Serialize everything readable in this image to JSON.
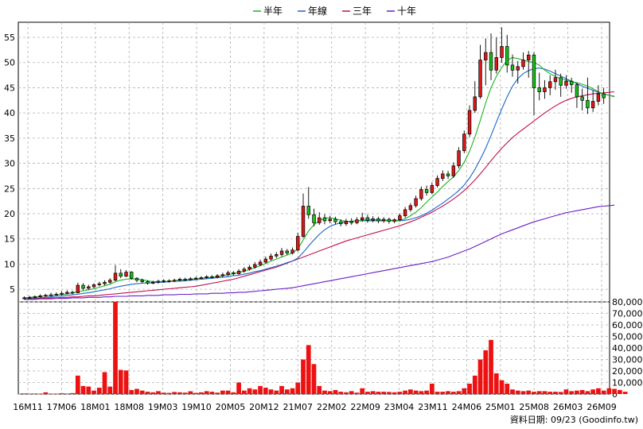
{
  "chart_data": {
    "type": "candlestick",
    "legend": [
      {
        "name": "半年",
        "color": "#1fb31f"
      },
      {
        "name": "年線",
        "color": "#1a66cc"
      },
      {
        "name": "三年",
        "color": "#c01050"
      },
      {
        "name": "十年",
        "color": "#6a1fc8"
      }
    ],
    "price_axis": {
      "ylim": [
        2.5,
        58
      ],
      "ticks": [
        5,
        10,
        15,
        20,
        25,
        30,
        35,
        40,
        45,
        50,
        55
      ]
    },
    "volume_axis": {
      "ylim": [
        0,
        80000
      ],
      "ticks": [
        "80,000",
        "70,000",
        "60,000",
        "50,000",
        "40,000",
        "30,000",
        "20,000",
        "10,000",
        "0"
      ]
    },
    "x_labels": [
      "16M11",
      "17M06",
      "18M01",
      "18M08",
      "19M03",
      "19M10",
      "20M05",
      "20M12",
      "21M07",
      "22M02",
      "22M09",
      "23M04",
      "23M11",
      "24M06",
      "25M01",
      "25M08",
      "26M03",
      "26M09"
    ],
    "candles": [
      {
        "o": 3.2,
        "c": 3.3,
        "h": 3.6,
        "l": 3.0
      },
      {
        "o": 3.3,
        "c": 3.4,
        "h": 3.7,
        "l": 3.1
      },
      {
        "o": 3.4,
        "c": 3.5,
        "h": 3.8,
        "l": 3.2
      },
      {
        "o": 3.5,
        "c": 3.7,
        "h": 4.0,
        "l": 3.3
      },
      {
        "o": 3.7,
        "c": 3.8,
        "h": 4.1,
        "l": 3.5
      },
      {
        "o": 3.8,
        "c": 3.9,
        "h": 4.3,
        "l": 3.6
      },
      {
        "o": 3.9,
        "c": 4.0,
        "h": 4.4,
        "l": 3.7
      },
      {
        "o": 4.0,
        "c": 4.2,
        "h": 4.6,
        "l": 3.8
      },
      {
        "o": 4.2,
        "c": 4.4,
        "h": 4.8,
        "l": 4.0
      },
      {
        "o": 4.4,
        "c": 4.3,
        "h": 4.7,
        "l": 4.0
      },
      {
        "o": 4.3,
        "c": 5.8,
        "h": 6.3,
        "l": 4.2
      },
      {
        "o": 5.8,
        "c": 5.2,
        "h": 6.2,
        "l": 4.8
      },
      {
        "o": 5.2,
        "c": 5.5,
        "h": 5.9,
        "l": 4.9
      },
      {
        "o": 5.5,
        "c": 5.9,
        "h": 6.2,
        "l": 5.2
      },
      {
        "o": 5.9,
        "c": 6.1,
        "h": 6.5,
        "l": 5.6
      },
      {
        "o": 6.1,
        "c": 6.4,
        "h": 6.8,
        "l": 5.8
      },
      {
        "o": 6.4,
        "c": 6.8,
        "h": 7.2,
        "l": 6.1
      },
      {
        "o": 6.8,
        "c": 8.2,
        "h": 9.8,
        "l": 6.6
      },
      {
        "o": 8.2,
        "c": 7.6,
        "h": 9.0,
        "l": 7.2
      },
      {
        "o": 7.6,
        "c": 8.4,
        "h": 8.8,
        "l": 7.4
      },
      {
        "o": 8.4,
        "c": 7.2,
        "h": 8.6,
        "l": 6.9
      },
      {
        "o": 7.2,
        "c": 6.8,
        "h": 7.4,
        "l": 6.4
      },
      {
        "o": 6.8,
        "c": 6.5,
        "h": 7.1,
        "l": 6.2
      },
      {
        "o": 6.5,
        "c": 6.2,
        "h": 6.8,
        "l": 5.9
      },
      {
        "o": 6.2,
        "c": 6.4,
        "h": 6.7,
        "l": 6.0
      },
      {
        "o": 6.4,
        "c": 6.6,
        "h": 6.9,
        "l": 6.1
      },
      {
        "o": 6.6,
        "c": 6.7,
        "h": 7.0,
        "l": 6.3
      },
      {
        "o": 6.7,
        "c": 6.6,
        "h": 7.0,
        "l": 6.3
      },
      {
        "o": 6.6,
        "c": 6.8,
        "h": 7.1,
        "l": 6.4
      },
      {
        "o": 6.8,
        "c": 7.0,
        "h": 7.3,
        "l": 6.6
      },
      {
        "o": 7.0,
        "c": 6.9,
        "h": 7.3,
        "l": 6.6
      },
      {
        "o": 6.9,
        "c": 7.1,
        "h": 7.4,
        "l": 6.7
      },
      {
        "o": 7.1,
        "c": 7.2,
        "h": 7.5,
        "l": 6.9
      },
      {
        "o": 7.2,
        "c": 7.3,
        "h": 7.6,
        "l": 7.0
      },
      {
        "o": 7.3,
        "c": 7.5,
        "h": 7.8,
        "l": 7.1
      },
      {
        "o": 7.5,
        "c": 7.4,
        "h": 7.8,
        "l": 7.1
      },
      {
        "o": 7.4,
        "c": 7.7,
        "h": 8.0,
        "l": 7.2
      },
      {
        "o": 7.7,
        "c": 7.9,
        "h": 8.3,
        "l": 7.4
      },
      {
        "o": 7.9,
        "c": 8.3,
        "h": 8.7,
        "l": 7.6
      },
      {
        "o": 8.3,
        "c": 8.1,
        "h": 8.6,
        "l": 7.7
      },
      {
        "o": 8.1,
        "c": 8.6,
        "h": 9.0,
        "l": 7.9
      },
      {
        "o": 8.6,
        "c": 9.0,
        "h": 9.4,
        "l": 8.3
      },
      {
        "o": 9.0,
        "c": 9.4,
        "h": 9.8,
        "l": 8.7
      },
      {
        "o": 9.4,
        "c": 9.9,
        "h": 10.4,
        "l": 9.1
      },
      {
        "o": 9.9,
        "c": 10.4,
        "h": 10.9,
        "l": 9.6
      },
      {
        "o": 10.4,
        "c": 11.0,
        "h": 11.5,
        "l": 10.1
      },
      {
        "o": 11.0,
        "c": 11.6,
        "h": 12.1,
        "l": 10.7
      },
      {
        "o": 11.6,
        "c": 11.9,
        "h": 12.4,
        "l": 11.2
      },
      {
        "o": 11.9,
        "c": 12.6,
        "h": 13.2,
        "l": 11.5
      },
      {
        "o": 12.6,
        "c": 12.2,
        "h": 13.0,
        "l": 11.8
      },
      {
        "o": 12.2,
        "c": 12.8,
        "h": 13.3,
        "l": 11.9
      },
      {
        "o": 12.8,
        "c": 15.5,
        "h": 16.2,
        "l": 12.5
      },
      {
        "o": 15.5,
        "c": 21.5,
        "h": 24.0,
        "l": 15.2
      },
      {
        "o": 21.5,
        "c": 19.8,
        "h": 25.3,
        "l": 19.0
      },
      {
        "o": 19.8,
        "c": 18.2,
        "h": 21.0,
        "l": 17.5
      },
      {
        "o": 18.2,
        "c": 19.2,
        "h": 20.3,
        "l": 17.8
      },
      {
        "o": 19.2,
        "c": 18.6,
        "h": 19.9,
        "l": 17.9
      },
      {
        "o": 18.6,
        "c": 18.9,
        "h": 19.6,
        "l": 18.1
      },
      {
        "o": 18.9,
        "c": 18.4,
        "h": 19.4,
        "l": 17.9
      },
      {
        "o": 18.4,
        "c": 18.0,
        "h": 18.9,
        "l": 17.5
      },
      {
        "o": 18.0,
        "c": 18.5,
        "h": 19.0,
        "l": 17.6
      },
      {
        "o": 18.5,
        "c": 18.2,
        "h": 19.1,
        "l": 17.8
      },
      {
        "o": 18.2,
        "c": 18.8,
        "h": 19.3,
        "l": 17.9
      },
      {
        "o": 18.8,
        "c": 19.2,
        "h": 20.2,
        "l": 18.4
      },
      {
        "o": 19.2,
        "c": 18.7,
        "h": 19.8,
        "l": 18.2
      },
      {
        "o": 18.7,
        "c": 19.0,
        "h": 19.5,
        "l": 18.3
      },
      {
        "o": 19.0,
        "c": 18.6,
        "h": 19.4,
        "l": 18.1
      },
      {
        "o": 18.6,
        "c": 18.9,
        "h": 19.3,
        "l": 18.2
      },
      {
        "o": 18.9,
        "c": 18.5,
        "h": 19.2,
        "l": 18.0
      },
      {
        "o": 18.5,
        "c": 18.8,
        "h": 19.1,
        "l": 18.1
      },
      {
        "o": 18.8,
        "c": 19.6,
        "h": 20.0,
        "l": 18.5
      },
      {
        "o": 19.6,
        "c": 20.8,
        "h": 21.3,
        "l": 19.2
      },
      {
        "o": 20.8,
        "c": 21.6,
        "h": 22.1,
        "l": 20.4
      },
      {
        "o": 21.6,
        "c": 23.0,
        "h": 23.6,
        "l": 21.2
      },
      {
        "o": 23.0,
        "c": 24.8,
        "h": 25.4,
        "l": 22.6
      },
      {
        "o": 24.8,
        "c": 24.2,
        "h": 25.6,
        "l": 23.6
      },
      {
        "o": 24.2,
        "c": 25.6,
        "h": 26.2,
        "l": 23.9
      },
      {
        "o": 25.6,
        "c": 27.0,
        "h": 27.6,
        "l": 25.2
      },
      {
        "o": 27.0,
        "c": 27.9,
        "h": 28.6,
        "l": 26.5
      },
      {
        "o": 27.9,
        "c": 27.5,
        "h": 28.5,
        "l": 26.9
      },
      {
        "o": 27.5,
        "c": 29.5,
        "h": 30.2,
        "l": 27.1
      },
      {
        "o": 29.5,
        "c": 32.5,
        "h": 33.2,
        "l": 29.0
      },
      {
        "o": 32.5,
        "c": 35.8,
        "h": 36.5,
        "l": 32.0
      },
      {
        "o": 35.8,
        "c": 40.5,
        "h": 41.5,
        "l": 35.2
      },
      {
        "o": 40.5,
        "c": 43.2,
        "h": 46.3,
        "l": 40.0
      },
      {
        "o": 43.2,
        "c": 50.5,
        "h": 53.5,
        "l": 42.8
      },
      {
        "o": 50.5,
        "c": 52.0,
        "h": 54.8,
        "l": 45.5
      },
      {
        "o": 52.0,
        "c": 48.5,
        "h": 55.8,
        "l": 46.5
      },
      {
        "o": 48.5,
        "c": 51.0,
        "h": 55.0,
        "l": 47.8
      },
      {
        "o": 51.0,
        "c": 53.2,
        "h": 57.0,
        "l": 50.0
      },
      {
        "o": 53.2,
        "c": 49.5,
        "h": 55.5,
        "l": 48.0
      },
      {
        "o": 49.5,
        "c": 48.5,
        "h": 51.6,
        "l": 47.2
      },
      {
        "o": 48.5,
        "c": 49.2,
        "h": 50.3,
        "l": 45.8
      },
      {
        "o": 49.2,
        "c": 50.5,
        "h": 52.0,
        "l": 48.6
      },
      {
        "o": 50.5,
        "c": 51.5,
        "h": 52.3,
        "l": 47.0
      },
      {
        "o": 51.5,
        "c": 45.0,
        "h": 52.0,
        "l": 39.5
      },
      {
        "o": 45.0,
        "c": 44.2,
        "h": 48.0,
        "l": 42.5
      },
      {
        "o": 44.2,
        "c": 45.0,
        "h": 46.5,
        "l": 42.8
      },
      {
        "o": 45.0,
        "c": 46.2,
        "h": 47.5,
        "l": 43.5
      },
      {
        "o": 46.2,
        "c": 47.0,
        "h": 48.6,
        "l": 44.6
      },
      {
        "o": 47.0,
        "c": 45.5,
        "h": 47.8,
        "l": 43.2
      },
      {
        "o": 45.5,
        "c": 46.3,
        "h": 47.5,
        "l": 44.8
      },
      {
        "o": 46.3,
        "c": 45.6,
        "h": 47.0,
        "l": 44.0
      },
      {
        "o": 45.6,
        "c": 43.2,
        "h": 46.0,
        "l": 41.0
      },
      {
        "o": 43.2,
        "c": 42.5,
        "h": 44.8,
        "l": 40.5
      },
      {
        "o": 42.5,
        "c": 41.0,
        "h": 47.0,
        "l": 39.8
      },
      {
        "o": 41.0,
        "c": 42.3,
        "h": 44.5,
        "l": 40.2
      },
      {
        "o": 42.3,
        "c": 43.8,
        "h": 45.5,
        "l": 41.5
      },
      {
        "o": 43.8,
        "c": 43.0,
        "h": 45.0,
        "l": 41.8
      }
    ],
    "ma_half_year": [
      3.3,
      3.4,
      3.5,
      3.6,
      3.7,
      3.8,
      3.9,
      4.0,
      4.1,
      4.3,
      4.5,
      4.7,
      4.9,
      5.1,
      5.4,
      5.7,
      6.0,
      6.5,
      6.8,
      7.0,
      7.1,
      7.0,
      6.9,
      6.7,
      6.5,
      6.5,
      6.5,
      6.6,
      6.7,
      6.8,
      6.9,
      7.0,
      7.1,
      7.2,
      7.3,
      7.4,
      7.5,
      7.7,
      7.9,
      8.1,
      8.3,
      8.6,
      8.9,
      9.3,
      9.7,
      10.1,
      10.6,
      11.0,
      11.4,
      11.8,
      12.2,
      13.0,
      14.8,
      16.6,
      17.8,
      18.6,
      19.1,
      19.2,
      19.0,
      18.7,
      18.5,
      18.5,
      18.6,
      18.7,
      18.8,
      18.8,
      18.8,
      18.7,
      18.7,
      18.7,
      18.7,
      19.0,
      19.6,
      20.3,
      21.2,
      22.3,
      23.3,
      24.3,
      25.4,
      26.4,
      27.3,
      28.6,
      30.2,
      32.4,
      35.2,
      38.5,
      42.0,
      45.0,
      47.3,
      49.0,
      50.5,
      51.0,
      50.8,
      50.5,
      50.2,
      50.0,
      49.5,
      48.5,
      47.8,
      47.2,
      46.8,
      46.5,
      46.2,
      46.0,
      45.7,
      45.3,
      44.8,
      44.2,
      43.8,
      43.5,
      43.2
    ],
    "ma_year": [
      3.1,
      3.2,
      3.3,
      3.3,
      3.4,
      3.5,
      3.6,
      3.7,
      3.8,
      3.9,
      4.0,
      4.2,
      4.3,
      4.5,
      4.7,
      4.9,
      5.1,
      5.4,
      5.6,
      5.8,
      6.0,
      6.1,
      6.2,
      6.3,
      6.3,
      6.4,
      6.4,
      6.5,
      6.6,
      6.6,
      6.7,
      6.8,
      6.9,
      7.0,
      7.1,
      7.2,
      7.3,
      7.4,
      7.5,
      7.7,
      7.8,
      8.0,
      8.2,
      8.5,
      8.7,
      9.0,
      9.3,
      9.6,
      9.9,
      10.3,
      10.6,
      11.2,
      12.3,
      13.6,
      14.8,
      15.9,
      16.8,
      17.5,
      17.9,
      18.2,
      18.4,
      18.5,
      18.6,
      18.6,
      18.6,
      18.6,
      18.6,
      18.6,
      18.6,
      18.6,
      18.6,
      18.7,
      18.9,
      19.2,
      19.6,
      20.1,
      20.7,
      21.4,
      22.1,
      22.9,
      23.7,
      24.6,
      25.7,
      27.1,
      28.8,
      30.8,
      33.0,
      35.5,
      38.2,
      40.8,
      43.2,
      45.3,
      46.8,
      47.8,
      48.4,
      48.8,
      48.9,
      48.7,
      48.3,
      47.8,
      47.3,
      46.8,
      46.3,
      45.8,
      45.3,
      44.9,
      44.5,
      44.1,
      43.8,
      43.5,
      43.3
    ],
    "ma_three_year": [
      3.0,
      3.1,
      3.1,
      3.2,
      3.2,
      3.3,
      3.3,
      3.4,
      3.4,
      3.5,
      3.5,
      3.6,
      3.7,
      3.7,
      3.8,
      3.9,
      4.0,
      4.1,
      4.2,
      4.3,
      4.4,
      4.5,
      4.6,
      4.7,
      4.8,
      4.9,
      5.0,
      5.1,
      5.2,
      5.3,
      5.4,
      5.5,
      5.6,
      5.8,
      6.0,
      6.2,
      6.4,
      6.6,
      6.8,
      7.0,
      7.3,
      7.6,
      7.9,
      8.2,
      8.5,
      8.8,
      9.1,
      9.4,
      9.8,
      10.2,
      10.6,
      11.0,
      11.4,
      11.8,
      12.2,
      12.6,
      13.0,
      13.4,
      13.8,
      14.2,
      14.6,
      14.9,
      15.2,
      15.5,
      15.8,
      16.1,
      16.4,
      16.7,
      17.0,
      17.3,
      17.6,
      18.0,
      18.4,
      18.8,
      19.3,
      19.8,
      20.3,
      20.9,
      21.5,
      22.2,
      22.9,
      23.7,
      24.6,
      25.6,
      26.7,
      27.9,
      29.2,
      30.5,
      31.8,
      33.0,
      34.1,
      35.1,
      36.0,
      36.8,
      37.6,
      38.4,
      39.2,
      40.0,
      40.7,
      41.4,
      42.0,
      42.5,
      42.9,
      43.2,
      43.4,
      43.6,
      43.8,
      43.9,
      44.0,
      44.1,
      44.2
    ],
    "ma_ten_year": [
      3.0,
      3.0,
      3.0,
      3.1,
      3.1,
      3.1,
      3.2,
      3.2,
      3.2,
      3.3,
      3.3,
      3.3,
      3.4,
      3.4,
      3.4,
      3.5,
      3.5,
      3.6,
      3.6,
      3.6,
      3.7,
      3.7,
      3.7,
      3.8,
      3.8,
      3.8,
      3.9,
      3.9,
      3.9,
      4.0,
      4.0,
      4.0,
      4.1,
      4.1,
      4.1,
      4.2,
      4.2,
      4.2,
      4.3,
      4.3,
      4.4,
      4.4,
      4.5,
      4.6,
      4.7,
      4.8,
      4.9,
      5.0,
      5.1,
      5.2,
      5.3,
      5.5,
      5.7,
      5.9,
      6.1,
      6.3,
      6.5,
      6.7,
      6.9,
      7.1,
      7.3,
      7.5,
      7.7,
      7.9,
      8.1,
      8.3,
      8.5,
      8.7,
      8.9,
      9.1,
      9.3,
      9.5,
      9.7,
      9.9,
      10.1,
      10.3,
      10.5,
      10.8,
      11.1,
      11.4,
      11.8,
      12.2,
      12.6,
      13.0,
      13.5,
      14.0,
      14.5,
      15.0,
      15.5,
      16.0,
      16.4,
      16.8,
      17.2,
      17.6,
      18.0,
      18.4,
      18.7,
      19.0,
      19.3,
      19.6,
      19.9,
      20.2,
      20.4,
      20.6,
      20.8,
      21.0,
      21.2,
      21.4,
      21.5,
      21.6,
      21.7
    ],
    "volumes": [
      500,
      300,
      400,
      200,
      1500,
      300,
      200,
      600,
      400,
      800,
      16000,
      7000,
      6500,
      3000,
      5500,
      19000,
      6500,
      80000,
      21000,
      20500,
      3500,
      4500,
      3000,
      2000,
      1500,
      2500,
      1200,
      1000,
      1800,
      1500,
      1200,
      2400,
      1000,
      1500,
      2500,
      2000,
      1200,
      3000,
      3000,
      1500,
      10000,
      3000,
      5000,
      4000,
      7000,
      5500,
      4000,
      3000,
      7000,
      4000,
      5000,
      10000,
      30000,
      42500,
      26000,
      7000,
      3000,
      2500,
      3500,
      2000,
      1500,
      2500,
      1200,
      5000,
      2000,
      2500,
      2000,
      2000,
      1800,
      1500,
      2000,
      3000,
      4000,
      3000,
      2500,
      3000,
      9000,
      2000,
      2000,
      2500,
      2000,
      2500,
      5000,
      9000,
      16000,
      30000,
      38000,
      47000,
      18000,
      12000,
      9000,
      4000,
      3000,
      2500,
      3000,
      2000,
      2500,
      2500,
      2000,
      2000,
      1800,
      4000,
      2500,
      3000,
      3500,
      2500,
      4000,
      5000,
      3000,
      5000,
      4500,
      3500,
      2000
    ],
    "footer": "資料日期: 09/23  (Goodinfo.tw)"
  }
}
